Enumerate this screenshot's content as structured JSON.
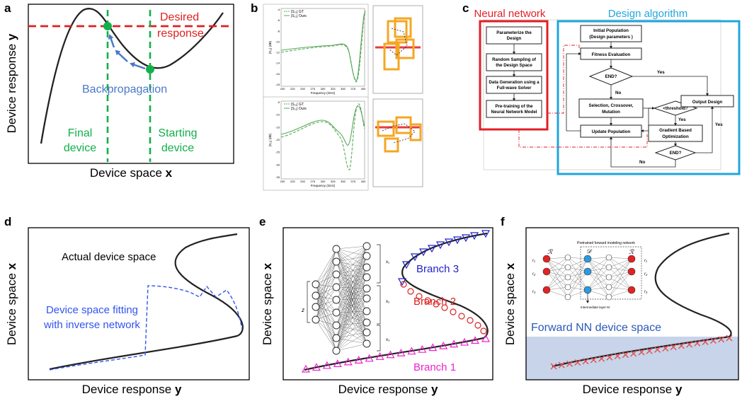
{
  "colors": {
    "desired": "#e02020",
    "green": "#12b04a",
    "blue_arrow": "#4a78c8",
    "fit_blue": "#3355ee",
    "branch3": "#2222cc",
    "branch2": "#dd2222",
    "branch1": "#ee22cc",
    "curve": "#222222",
    "nn_box_red": "#e21f26",
    "algo_box_cyan": "#21a6dc",
    "shade": "#c7d4ea",
    "forward_text": "#2b58b8",
    "plot_green": "#58a858",
    "geom_orange": "#f5a623"
  },
  "panel_a": {
    "letter": "a",
    "ylabel_text": "Device response ",
    "ylabel_var": "y",
    "xlabel_text": "Device space ",
    "xlabel_var": "x",
    "desired": "Desired",
    "response": "response",
    "backprop": "Backpropagation",
    "final_1": "Final",
    "final_2": "device",
    "start_1": "Starting",
    "start_2": "device"
  },
  "panel_b": {
    "letter": "b",
    "freq_label": "Frequency (GHz)",
    "y_label": "|S₂₁| (dB)",
    "legend_1": "|S₂₁| GT",
    "legend_2": "|S₂₁| Ours",
    "x_ticks": [
      "200",
      "225",
      "250",
      "275",
      "300",
      "325",
      "350",
      "375",
      "400"
    ],
    "y_ticks_top": [
      "-4",
      "-6",
      "-8",
      "-10",
      "-12",
      "-14",
      "-16",
      "-18"
    ],
    "y_ticks_bottom": [
      "-5",
      "-10",
      "-15",
      "-20",
      "-25",
      "-30",
      "-35"
    ]
  },
  "panel_c": {
    "letter": "c",
    "nn_title": "Neural network",
    "algo_title": "Design algorithm",
    "nn_steps": [
      [
        "Parameterize the",
        "Design"
      ],
      [
        "Random Sampling of",
        "the Design Space"
      ],
      [
        "Data Generation using a",
        "Full-wave Solver"
      ],
      [
        "Pre-training of the",
        "Neural Network Model"
      ]
    ],
    "init_pop": [
      "Initial Population",
      "(Design parameters )"
    ],
    "fitness": "Fitness Evaluation",
    "end": "END?",
    "selection": [
      "Selection, Crossover,",
      "Mutation"
    ],
    "threshold": "<threshold?",
    "update": "Update Population",
    "gradient": [
      "Gradient Based",
      "Optimization"
    ],
    "output": "Output Design",
    "end2": "END?",
    "yes": "Yes",
    "no": "No"
  },
  "panel_d": {
    "letter": "d",
    "ylabel_text": "Device space ",
    "ylabel_var": "x",
    "xlabel_text": "Device response ",
    "xlabel_var": "y",
    "actual": "Actual device space",
    "fit_1": "Device space fitting",
    "fit_2": "with inverse network"
  },
  "panel_e": {
    "letter": "e",
    "ylabel_text": "Device space ",
    "ylabel_var": "x",
    "xlabel_text": "Device response ",
    "xlabel_var": "y",
    "branch3": "Branch 3",
    "branch2": "Branch 2",
    "branch1": "Branch 1"
  },
  "panel_f": {
    "letter": "f",
    "ylabel_text": "Device space ",
    "ylabel_var": "x",
    "xlabel_text": "Device response ",
    "xlabel_var": "y",
    "forward_nn": "Forward NN device space",
    "pretrained": "Pretrained forward modeling network",
    "intermediate": "Intermediate layer M",
    "R": "ℛ",
    "D": "𝒟",
    "in_labels": [
      "r₁",
      "r₂",
      "r₃"
    ],
    "out_labels": [
      "r₁",
      "r₂",
      "r₃"
    ]
  }
}
